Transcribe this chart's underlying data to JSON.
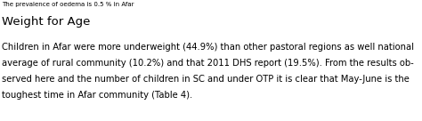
{
  "small_top_text": "The prevalence of oedema is 0.5 % in Afar",
  "heading": "Weight for Age",
  "body_lines": [
    "Children in Afar were more underweight (44.9%) than other pastoral regions as well national",
    "average of rural community (10.2%) and that 2011 DHS report (19.5%). From the results ob-",
    "served here and the number of children in SC and under OTP it is clear that May-June is the",
    "toughest time in Afar community (Table 4)."
  ],
  "background_color": "#ffffff",
  "small_text_color": "#000000",
  "heading_color": "#000000",
  "body_color": "#000000",
  "small_fontsize": 5.0,
  "heading_fontsize": 9.5,
  "body_fontsize": 7.2,
  "fig_width": 4.74,
  "fig_height": 1.36,
  "dpi": 100
}
